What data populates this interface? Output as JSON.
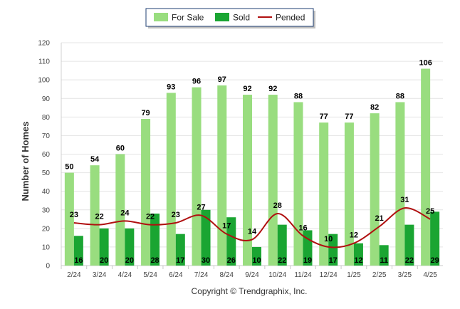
{
  "chart_data": {
    "type": "bar",
    "categories": [
      "2/24",
      "3/24",
      "4/24",
      "5/24",
      "6/24",
      "7/24",
      "8/24",
      "9/24",
      "10/24",
      "11/24",
      "12/24",
      "1/25",
      "2/25",
      "3/25",
      "4/25"
    ],
    "series": [
      {
        "name": "For Sale",
        "type": "bar",
        "color": "#99dd7f",
        "values": [
          50,
          54,
          60,
          79,
          93,
          96,
          97,
          92,
          92,
          88,
          77,
          77,
          82,
          88,
          106
        ]
      },
      {
        "name": "Sold",
        "type": "bar",
        "color": "#1aa532",
        "values": [
          16,
          20,
          20,
          28,
          17,
          30,
          26,
          10,
          22,
          19,
          17,
          12,
          11,
          22,
          29
        ]
      },
      {
        "name": "Pended",
        "type": "line",
        "color": "#b01010",
        "values": [
          23,
          22,
          24,
          22,
          23,
          27,
          17,
          14,
          28,
          16,
          10,
          12,
          21,
          31,
          25
        ]
      }
    ],
    "ylabel": "Number of Homes",
    "xlabel": "",
    "ylim": [
      0,
      120
    ],
    "yticks": [
      0,
      10,
      20,
      30,
      40,
      50,
      60,
      70,
      80,
      90,
      100,
      110,
      120
    ],
    "grid": true,
    "legend_position": "top-center",
    "copyright": "Copyright © Trendgraphix, Inc."
  }
}
